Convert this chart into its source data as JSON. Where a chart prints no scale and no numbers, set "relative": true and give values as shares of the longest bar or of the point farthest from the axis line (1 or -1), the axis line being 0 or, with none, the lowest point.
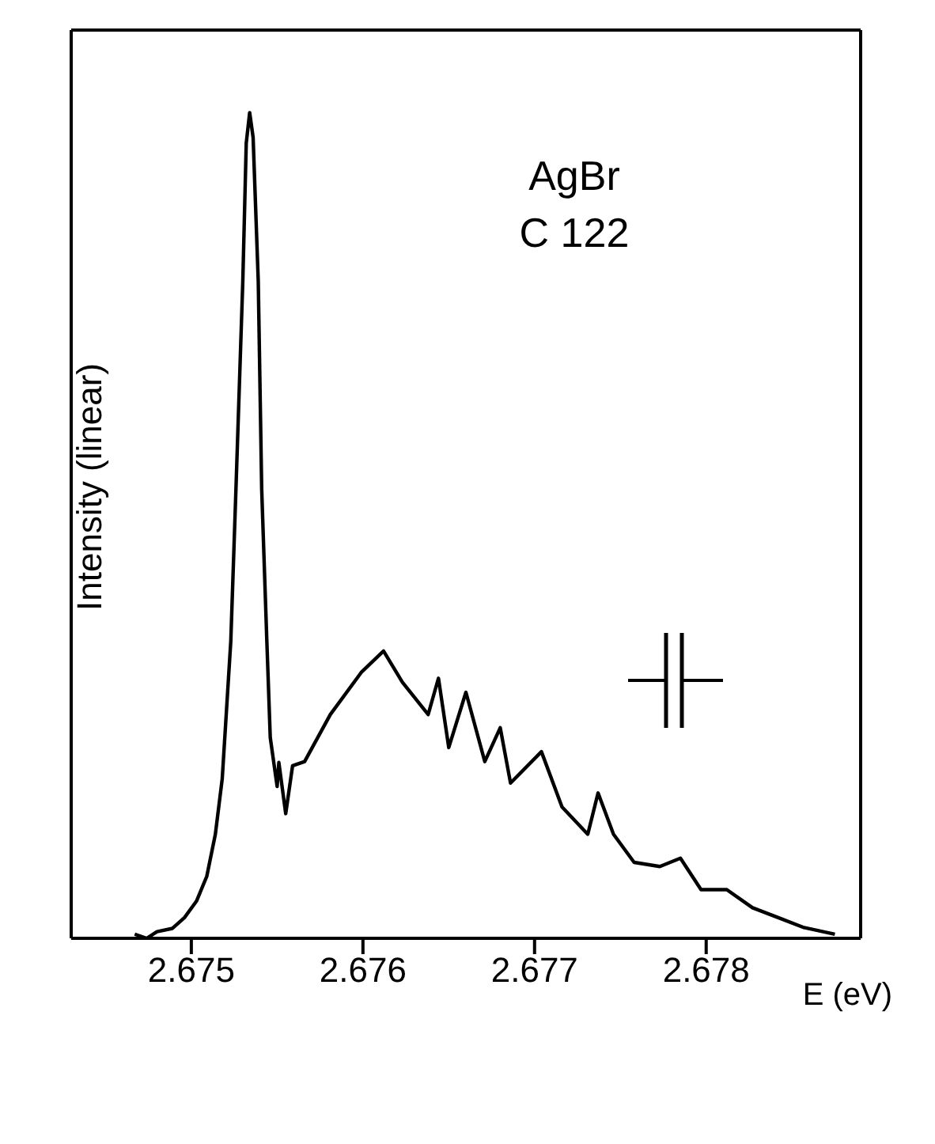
{
  "chart_data": {
    "type": "line",
    "relative": true,
    "xlabel": "E (eV)",
    "ylabel": "Intensity (linear)",
    "annotations": [
      "AgBr",
      "C 122"
    ],
    "xlim": [
      2.6743,
      2.6789
    ],
    "xticks": [
      2.675,
      2.676,
      2.677,
      2.678
    ],
    "grid": false,
    "legend": false,
    "marker": "none",
    "line_style": "solid",
    "series": [
      {
        "color": "#000000",
        "x": [
          2.67467,
          2.67474,
          2.6748,
          2.67489,
          2.67496,
          2.67503,
          2.67509,
          2.67514,
          2.67518,
          2.67523,
          2.67526,
          2.6753,
          2.67532,
          2.67534,
          2.67536,
          2.67539,
          2.67541,
          2.67544,
          2.67546,
          2.6755,
          2.67551,
          2.67555,
          2.67559,
          2.67566,
          2.67581,
          2.67599,
          2.67612,
          2.67623,
          2.67638,
          2.67644,
          2.6765,
          2.6766,
          2.67671,
          2.6768,
          2.67686,
          2.67704,
          2.67716,
          2.67731,
          2.67737,
          2.67746,
          2.67758,
          2.67773,
          2.67785,
          2.67797,
          2.67812,
          2.67827,
          2.67842,
          2.67857,
          2.67875
        ],
        "values": [
          0.005,
          0.0,
          0.008,
          0.012,
          0.025,
          0.045,
          0.075,
          0.126,
          0.193,
          0.36,
          0.544,
          0.796,
          0.963,
          1,
          0.97,
          0.796,
          0.544,
          0.36,
          0.243,
          0.184,
          0.213,
          0.151,
          0.209,
          0.214,
          0.271,
          0.322,
          0.348,
          0.31,
          0.271,
          0.315,
          0.231,
          0.298,
          0.214,
          0.255,
          0.188,
          0.226,
          0.159,
          0.126,
          0.176,
          0.126,
          0.092,
          0.087,
          0.097,
          0.059,
          0.059,
          0.037,
          0.025,
          0.013,
          0.005
        ]
      }
    ]
  }
}
